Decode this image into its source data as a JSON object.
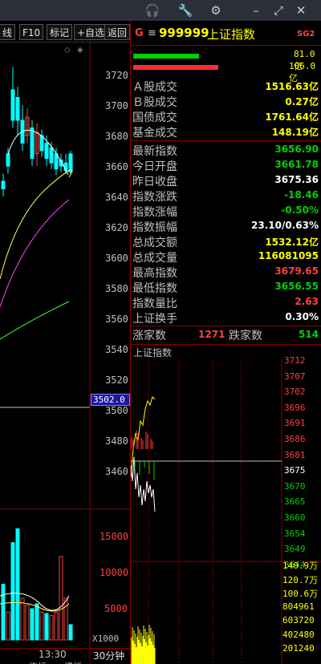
{
  "window": {
    "icons": [
      "headset-icon",
      "wrench-icon",
      "gear-icon",
      "minimize-icon",
      "restore-icon",
      "close-icon"
    ]
  },
  "toolbar": {
    "tab_partial": "线",
    "f10": "F10",
    "mark": "标记",
    "add_fav": "+自选",
    "back": "返回"
  },
  "header": {
    "g_label": "G",
    "menu_glyph": "≡",
    "code": "999999",
    "name": "上证指数",
    "badge": "SG2"
  },
  "ratio_bars": {
    "top_value": "81.0亿",
    "bottom_value": "106.0亿",
    "top_fill": 0.43,
    "bottom_fill": 0.56
  },
  "kline_axis": [
    "3720",
    "3700",
    "3680",
    "3660",
    "3640",
    "3620",
    "3600",
    "3580",
    "3560",
    "3540",
    "3520",
    "3500",
    "3480",
    "3460"
  ],
  "kline_crosshair": "3502.0",
  "volume_axis": [
    "15000",
    "10000",
    "5000"
  ],
  "volume_unit": "X1000",
  "bottom_labels": {
    "time": "13:30",
    "period": "30分钟",
    "tab1": "指标",
    "tab2": "模板"
  },
  "stats": [
    {
      "label": "Ａ股成交",
      "value": "1516.63亿",
      "color": "yellow"
    },
    {
      "label": "Ｂ股成交",
      "value": "0.27亿",
      "color": "yellow"
    },
    {
      "label": "国债成交",
      "value": "1761.64亿",
      "color": "yellow"
    },
    {
      "label": "基金成交",
      "value": "148.19亿",
      "color": "yellow"
    },
    {
      "label": "最新指数",
      "value": "3656.90",
      "color": "green"
    },
    {
      "label": "今日开盘",
      "value": "3661.78",
      "color": "green"
    },
    {
      "label": "昨日收盘",
      "value": "3675.36",
      "color": "white"
    },
    {
      "label": "指数涨跌",
      "value": "-18.46",
      "color": "green"
    },
    {
      "label": "指数涨幅",
      "value": "-0.50%",
      "color": "green"
    },
    {
      "label": "指数振幅",
      "value": "23.10/0.63%",
      "color": "white"
    },
    {
      "label": "总成交额",
      "value": "1532.12亿",
      "color": "yellow"
    },
    {
      "label": "总成交量",
      "value": "116081095",
      "color": "yellow"
    },
    {
      "label": "最高指数",
      "value": "3679.65",
      "color": "red"
    },
    {
      "label": "最低指数",
      "value": "3656.55",
      "color": "green"
    },
    {
      "label": "指数量比",
      "value": "2.63",
      "color": "red"
    },
    {
      "label": "上证换手",
      "value": "0.30%",
      "color": "white"
    }
  ],
  "advance_decline": {
    "up_label": "涨家数",
    "up_value": "1271",
    "down_label": "跌家数",
    "down_value": "514"
  },
  "intraday": {
    "title": "上证指数",
    "price_axis": [
      {
        "v": "3712",
        "c": "red"
      },
      {
        "v": "3707",
        "c": "red"
      },
      {
        "v": "3702",
        "c": "red"
      },
      {
        "v": "3696",
        "c": "red"
      },
      {
        "v": "3691",
        "c": "red"
      },
      {
        "v": "3686",
        "c": "red"
      },
      {
        "v": "3681",
        "c": "red"
      },
      {
        "v": "3675",
        "c": "white"
      },
      {
        "v": "3670",
        "c": "green"
      },
      {
        "v": "3665",
        "c": "green"
      },
      {
        "v": "3660",
        "c": "green"
      },
      {
        "v": "3654",
        "c": "green"
      },
      {
        "v": "3649",
        "c": "green"
      },
      {
        "v": "3644",
        "c": "green"
      }
    ],
    "vol_axis": [
      "140.9万",
      "120.7万",
      "100.6万",
      "804961",
      "603720",
      "402480",
      "201240"
    ]
  },
  "colors": {
    "up": "#ff4040",
    "down": "#00ffff",
    "yellow": "#ffff00",
    "grid": "#8b0000"
  }
}
